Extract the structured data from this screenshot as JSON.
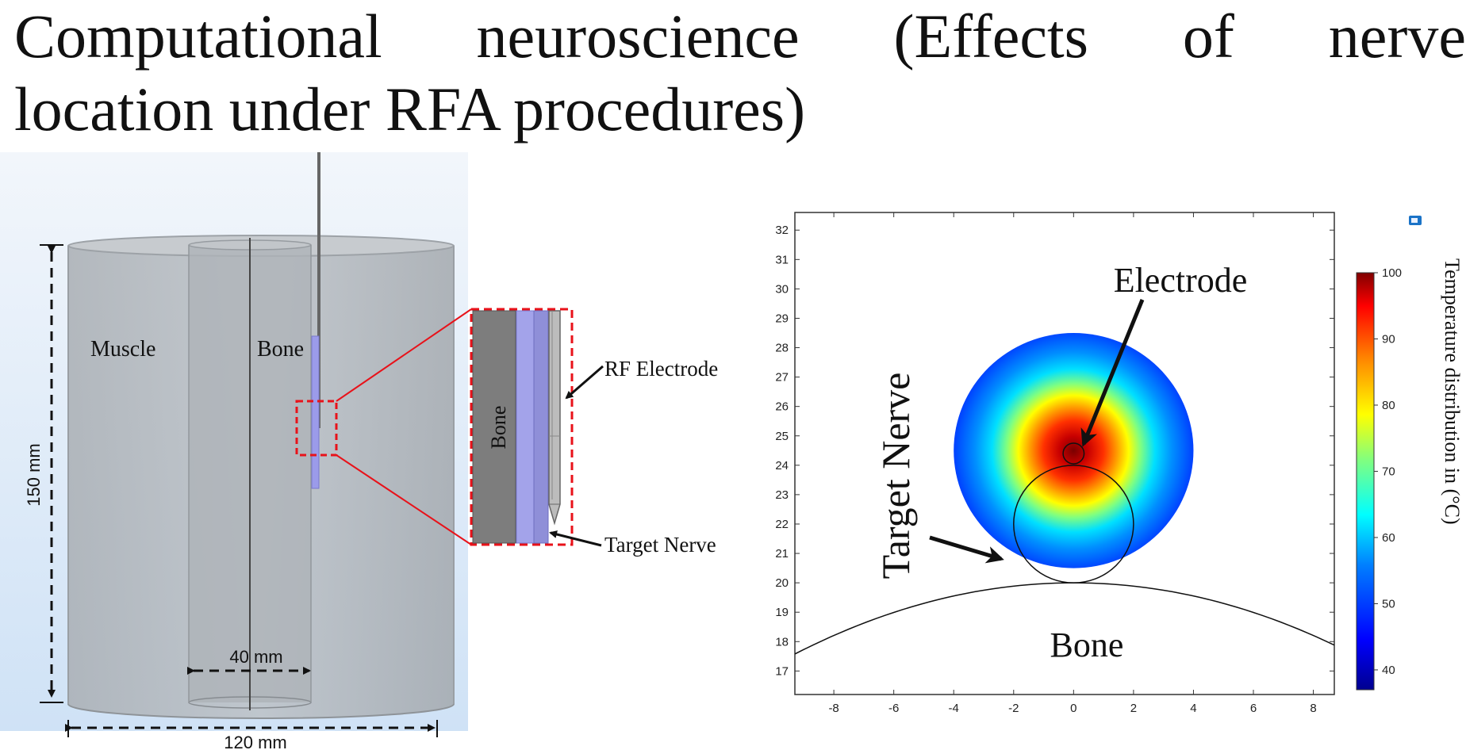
{
  "title": {
    "line1_words": [
      "Computational",
      "neuroscience",
      "(Effects",
      "of",
      "nerve"
    ],
    "line2": "location under RFA procedures)"
  },
  "geometry_figure": {
    "labels": {
      "muscle": "Muscle",
      "bone": "Bone",
      "height": "150 mm",
      "inner_width": "40 mm",
      "outer_width": "120 mm"
    },
    "zoom_inset": {
      "bone": "Bone",
      "rf_electrode": "RF Electrode",
      "target_nerve": "Target Nerve"
    }
  },
  "chart_data": {
    "type": "heatmap",
    "title": "",
    "xlabel": "",
    "ylabel": "",
    "xlim": [
      -9.3,
      8.7
    ],
    "ylim": [
      16.2,
      32.6
    ],
    "x_ticks": [
      "-8",
      "-6",
      "-4",
      "-2",
      "0",
      "2",
      "4",
      "6",
      "8"
    ],
    "y_ticks": [
      "17",
      "18",
      "19",
      "20",
      "21",
      "22",
      "23",
      "24",
      "25",
      "26",
      "27",
      "28",
      "29",
      "30",
      "31",
      "32"
    ],
    "heat_region": {
      "center": [
        0,
        24.5
      ],
      "radius": 4.0,
      "max_temp": 100,
      "min_temp": 40
    },
    "electrode_circle": {
      "center": [
        0,
        24.4
      ],
      "radius": 0.35
    },
    "nerve_circle": {
      "center": [
        0,
        22.0
      ],
      "radius": 2.0
    },
    "bone_surface_peak": [
      0,
      20.0
    ],
    "annotations": {
      "electrode": "Electrode",
      "target_nerve": "Target Nerve",
      "bone": "Bone"
    },
    "colorbar": {
      "label": "Temperature distribution in (°C)",
      "ticks": [
        "100",
        "90",
        "80",
        "70",
        "60",
        "50",
        "40"
      ],
      "range": [
        37,
        100
      ],
      "colors": [
        "#00008f",
        "#0000ff",
        "#0080ff",
        "#00ffff",
        "#80ff80",
        "#ffff00",
        "#ff8000",
        "#ff0000",
        "#800000"
      ]
    }
  }
}
